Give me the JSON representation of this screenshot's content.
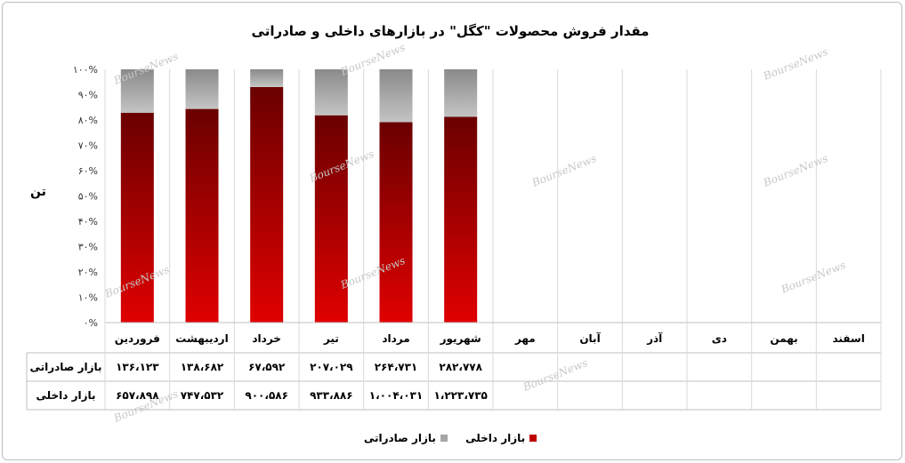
{
  "chart_data": {
    "type": "bar",
    "stacked_percent": true,
    "title": "مقدار فروش محصولات \"کگل\" در بازارهای  داخلی و صادراتی",
    "ylabel": "تن",
    "categories": [
      "فروردین",
      "اردیبهشت",
      "خرداد",
      "تیر",
      "مرداد",
      "شهریور",
      "مهر",
      "آبان",
      "آذر",
      "دی",
      "بهمن",
      "اسفند"
    ],
    "yticks": [
      "۰%",
      "۱۰%",
      "۲۰%",
      "۳۰%",
      "۴۰%",
      "۵۰%",
      "۶۰%",
      "۷۰%",
      "۸۰%",
      "۹۰%",
      "۱۰۰%"
    ],
    "ylim": [
      0,
      100
    ],
    "legend_position": "bottom",
    "series": [
      {
        "name": "بازار داخلی",
        "color": "#c00000",
        "values": [
          657898,
          747532,
          900586,
          933886,
          1004031,
          1223735,
          null,
          null,
          null,
          null,
          null,
          null
        ],
        "labels": [
          "۶۵۷،۸۹۸",
          "۷۴۷،۵۳۲",
          "۹۰۰،۵۸۶",
          "۹۳۳،۸۸۶",
          "۱،۰۰۴،۰۳۱",
          "۱،۲۲۳،۷۳۵",
          "",
          "",
          "",
          "",
          "",
          ""
        ]
      },
      {
        "name": "بازار صادراتی",
        "color": "#a6a6a6",
        "values": [
          136123,
          138682,
          67592,
          207029,
          264731,
          282778,
          null,
          null,
          null,
          null,
          null,
          null
        ],
        "labels": [
          "۱۳۶،۱۲۳",
          "۱۳۸،۶۸۲",
          "۶۷،۵۹۲",
          "۲۰۷،۰۲۹",
          "۲۶۴،۷۳۱",
          "۲۸۲،۷۷۸",
          "",
          "",
          "",
          "",
          "",
          ""
        ]
      }
    ],
    "table_rows": [
      "بازار صادراتی",
      "بازار داخلی"
    ],
    "watermark": "BourseNews"
  }
}
